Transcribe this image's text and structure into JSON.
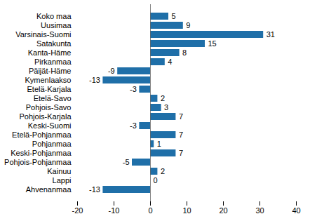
{
  "chart_data": {
    "type": "bar",
    "orientation": "horizontal",
    "categories": [
      "Koko maa",
      "Uusimaa",
      "Varsinais-Suomi",
      "Satakunta",
      "Kanta-Häme",
      "Pirkanmaa",
      "Päijät-Häme",
      "Kymenlaakso",
      "Etelä-Karjala",
      "Etelä-Savo",
      "Pohjois-Savo",
      "Pohjois-Karjala",
      "Keski-Suomi",
      "Etelä-Pohjanmaa",
      "Pohjanmaa",
      "Keski-Pohjanmaa",
      "Pohjois-Pohjanmaa",
      "Kainuu",
      "Lappi",
      "Ahvenanmaa"
    ],
    "values": [
      5,
      9,
      31,
      15,
      8,
      4,
      -9,
      -13,
      -3,
      2,
      3,
      7,
      -3,
      7,
      1,
      7,
      -5,
      2,
      0,
      -13
    ],
    "color": "#1f6fa8",
    "xlim": [
      -20,
      40
    ],
    "xticks": [
      -20,
      -10,
      0,
      10,
      20,
      30,
      40
    ],
    "grid": false,
    "data_labels": true
  }
}
